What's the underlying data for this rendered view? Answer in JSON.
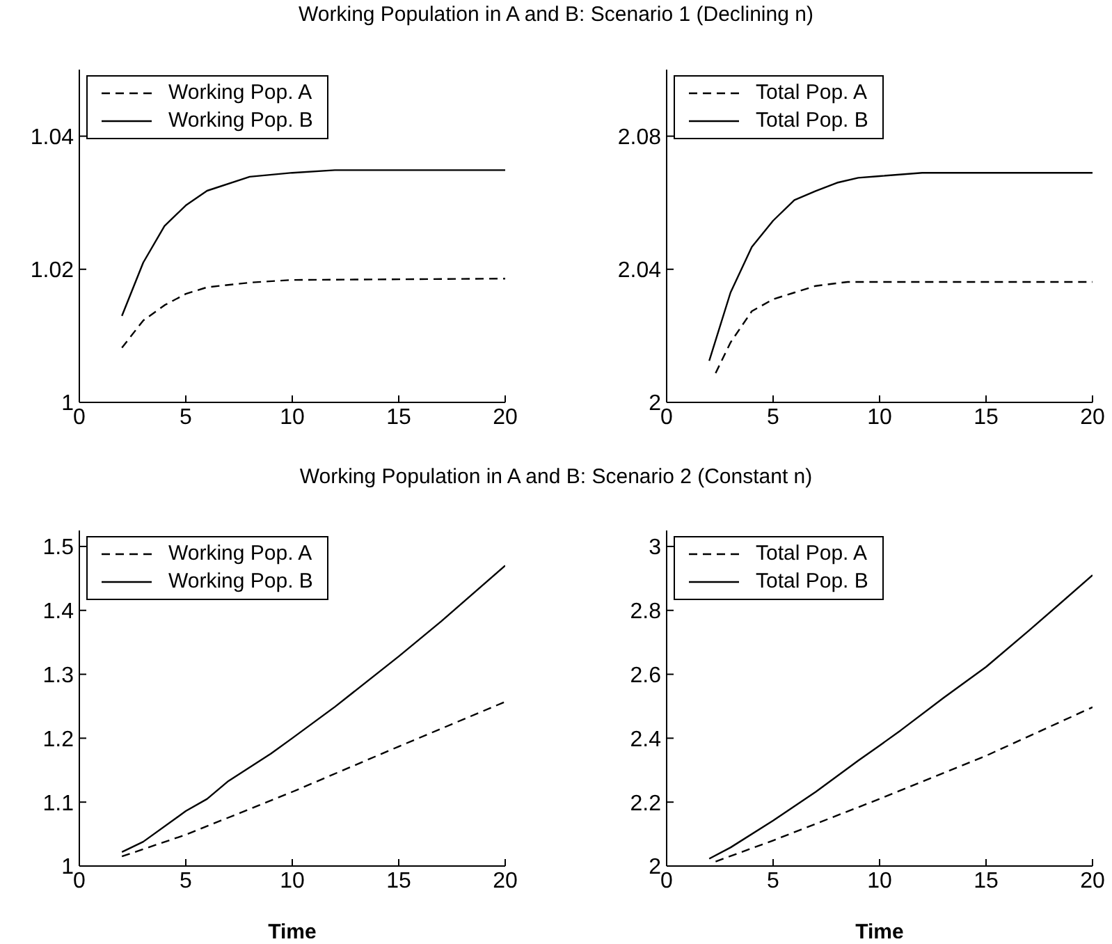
{
  "chart_data": [
    {
      "type": "line",
      "title": "Working Population in A and B: Scenario 1 (Declining n)",
      "xlim": [
        0,
        20
      ],
      "xticks": [
        0,
        5,
        10,
        15,
        20
      ],
      "ylim": [
        1,
        1.05
      ],
      "yticks": [
        1,
        1.02,
        1.04
      ],
      "legend": "top left",
      "series": [
        {
          "name": "Working Pop. A",
          "color": "#000000",
          "line_style": "dashed",
          "x": [
            2,
            3,
            4,
            5,
            6,
            8,
            10,
            20
          ],
          "values": [
            1.0082,
            1.0123,
            1.0146,
            1.0163,
            1.0173,
            1.018,
            1.0184,
            1.0186
          ]
        },
        {
          "name": "Working Pop. B",
          "color": "#000000",
          "line_style": "solid",
          "x": [
            2,
            3,
            4,
            5,
            6,
            8,
            10,
            12,
            20
          ],
          "values": [
            1.013,
            1.021,
            1.0265,
            1.0296,
            1.0318,
            1.0339,
            1.0345,
            1.0349,
            1.0349
          ]
        }
      ]
    },
    {
      "type": "line",
      "xlim": [
        0,
        20
      ],
      "xticks": [
        0,
        5,
        10,
        15,
        20
      ],
      "ylim": [
        2,
        2.1
      ],
      "yticks": [
        2,
        2.04,
        2.08
      ],
      "legend": "top left",
      "series": [
        {
          "name": "Total Pop. A",
          "color": "#000000",
          "line_style": "dashed",
          "x": [
            2.3,
            3,
            4,
            5,
            6,
            7,
            8.5,
            20
          ],
          "values": [
            2.0088,
            2.018,
            2.0274,
            2.031,
            2.033,
            2.035,
            2.0362,
            2.0362
          ]
        },
        {
          "name": "Total Pop. B",
          "color": "#000000",
          "line_style": "solid",
          "x": [
            2,
            3,
            4,
            5,
            6,
            7,
            8,
            9,
            10,
            12,
            20
          ],
          "values": [
            2.0125,
            2.033,
            2.0467,
            2.0546,
            2.0608,
            2.0635,
            2.066,
            2.0675,
            2.068,
            2.069,
            2.069
          ]
        }
      ]
    },
    {
      "type": "line",
      "title": "Working Population in A and B: Scenario 2 (Constant n)",
      "xlabel": "Time",
      "xlim": [
        0,
        20
      ],
      "xticks": [
        0,
        5,
        10,
        15,
        20
      ],
      "ylim": [
        1,
        1.525
      ],
      "yticks": [
        1,
        1.1,
        1.2,
        1.3,
        1.4,
        1.5
      ],
      "legend": "top left",
      "series": [
        {
          "name": "Working Pop. A",
          "color": "#000000",
          "line_style": "dashed",
          "x": [
            2,
            5,
            10,
            15,
            20
          ],
          "values": [
            1.015,
            1.049,
            1.116,
            1.187,
            1.257
          ]
        },
        {
          "name": "Working Pop. B",
          "color": "#000000",
          "line_style": "solid",
          "x": [
            2,
            3,
            5,
            6,
            7,
            9,
            10,
            12,
            15,
            17,
            20
          ],
          "values": [
            1.022,
            1.038,
            1.086,
            1.105,
            1.133,
            1.176,
            1.2,
            1.249,
            1.328,
            1.383,
            1.47
          ]
        }
      ]
    },
    {
      "type": "line",
      "xlabel": "Time",
      "xlim": [
        0,
        20
      ],
      "xticks": [
        0,
        5,
        10,
        15,
        20
      ],
      "ylim": [
        2,
        3.05
      ],
      "yticks": [
        2,
        2.2,
        2.4,
        2.6,
        2.8,
        3
      ],
      "legend": "top left",
      "series": [
        {
          "name": "Total Pop. A",
          "color": "#000000",
          "line_style": "dashed",
          "x": [
            2.3,
            5,
            10,
            15,
            20
          ],
          "values": [
            2.014,
            2.08,
            2.21,
            2.345,
            2.497
          ]
        },
        {
          "name": "Total Pop. B",
          "color": "#000000",
          "line_style": "solid",
          "x": [
            2,
            3,
            5,
            7,
            9,
            10,
            11,
            13,
            15,
            17,
            20
          ],
          "values": [
            2.023,
            2.058,
            2.142,
            2.232,
            2.33,
            2.377,
            2.425,
            2.526,
            2.623,
            2.736,
            2.91
          ]
        }
      ]
    }
  ]
}
